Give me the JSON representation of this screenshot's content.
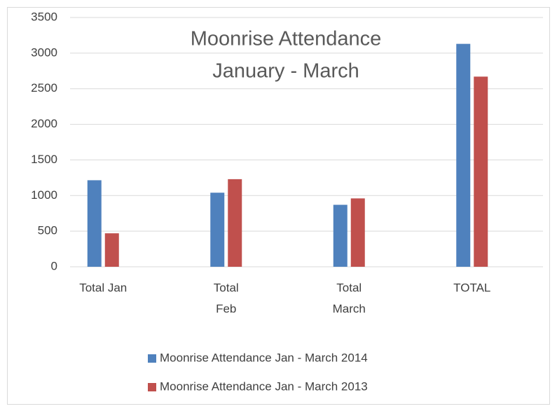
{
  "chart_data": {
    "type": "bar",
    "title": [
      "Moonrise Attendance",
      "January - March"
    ],
    "categories": [
      [
        "Total Jan"
      ],
      [
        "Total",
        "Feb"
      ],
      [
        "Total",
        "March"
      ],
      [
        "TOTAL"
      ]
    ],
    "series": [
      {
        "name": "Moonrise Attendance Jan - March 2014",
        "color": "#4f81bd",
        "values": [
          1215,
          1040,
          870,
          3130
        ]
      },
      {
        "name": "Moonrise Attendance Jan - March 2013",
        "color": "#c0504d",
        "values": [
          470,
          1230,
          960,
          2670
        ]
      }
    ],
    "ylim": [
      0,
      3500
    ],
    "yticks": [
      0,
      500,
      1000,
      1500,
      2000,
      2500,
      3000,
      3500
    ],
    "grid": true,
    "legend": "bottom"
  }
}
